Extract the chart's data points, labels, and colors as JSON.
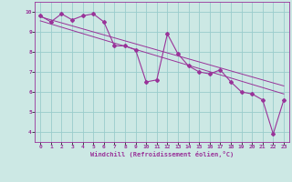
{
  "title": "",
  "xlabel": "Windchill (Refroidissement éolien,°C)",
  "ylabel": "",
  "bg_color": "#cce8e4",
  "line_color": "#993399",
  "grid_color": "#99cccc",
  "xlim": [
    -0.5,
    23.5
  ],
  "ylim": [
    3.5,
    10.5
  ],
  "yticks": [
    4,
    5,
    6,
    7,
    8,
    9,
    10
  ],
  "xticks": [
    0,
    1,
    2,
    3,
    4,
    5,
    6,
    7,
    8,
    9,
    10,
    11,
    12,
    13,
    14,
    15,
    16,
    17,
    18,
    19,
    20,
    21,
    22,
    23
  ],
  "data_x": [
    0,
    1,
    2,
    3,
    4,
    5,
    6,
    7,
    8,
    9,
    10,
    11,
    12,
    13,
    14,
    15,
    16,
    17,
    18,
    19,
    20,
    21,
    22,
    23
  ],
  "data_y": [
    9.8,
    9.5,
    9.9,
    9.6,
    9.8,
    9.9,
    9.5,
    8.3,
    8.3,
    8.1,
    6.5,
    6.6,
    8.9,
    7.9,
    7.3,
    7.0,
    6.9,
    7.1,
    6.5,
    6.0,
    5.9,
    5.6,
    3.9,
    5.6
  ],
  "trend1_x": [
    0,
    23
  ],
  "trend1_y": [
    9.75,
    6.3
  ],
  "trend2_x": [
    0,
    23
  ],
  "trend2_y": [
    9.55,
    5.9
  ]
}
